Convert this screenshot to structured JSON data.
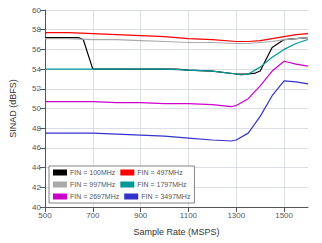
{
  "chart_data": {
    "type": "line",
    "xlabel": "Sample Rate (MSPS)",
    "ylabel": "SINAD (dBFS)",
    "xlim": [
      500,
      1600
    ],
    "ylim": [
      40,
      60
    ],
    "xticks": [
      500,
      700,
      900,
      1100,
      1300,
      1500
    ],
    "yticks": [
      40,
      42,
      44,
      46,
      48,
      50,
      52,
      54,
      56,
      58,
      60
    ],
    "grid": true,
    "legend": "lower left",
    "series": [
      {
        "name": "FIN = 100MHz",
        "color": "#000000",
        "x": [
          500,
          640,
          660,
          680,
          700,
          800,
          900,
          1000,
          1050,
          1100,
          1200,
          1300,
          1350,
          1380,
          1400,
          1450,
          1500,
          1550,
          1600
        ],
        "values": [
          57.2,
          57.2,
          57.0,
          55.5,
          54.0,
          54.0,
          54.0,
          54.0,
          54.0,
          53.9,
          53.8,
          53.5,
          53.5,
          53.6,
          53.8,
          56.2,
          57.0,
          57.1,
          57.2
        ]
      },
      {
        "name": "FIN = 497MHz",
        "color": "#ff0000",
        "x": [
          500,
          600,
          700,
          800,
          900,
          1000,
          1100,
          1200,
          1300,
          1350,
          1400,
          1450,
          1500,
          1550,
          1600
        ],
        "values": [
          57.7,
          57.7,
          57.6,
          57.5,
          57.4,
          57.3,
          57.1,
          57.0,
          56.8,
          56.8,
          56.9,
          57.1,
          57.3,
          57.5,
          57.6
        ]
      },
      {
        "name": "FIN = 997MHz",
        "color": "#aaaaaa",
        "x": [
          500,
          600,
          700,
          800,
          900,
          1000,
          1100,
          1200,
          1300,
          1350,
          1400,
          1450,
          1500,
          1550,
          1600
        ],
        "values": [
          57.1,
          57.1,
          57.0,
          57.0,
          56.9,
          56.8,
          56.7,
          56.7,
          56.6,
          56.6,
          56.7,
          56.8,
          57.0,
          57.1,
          57.2
        ]
      },
      {
        "name": "FIN = 1797MHz",
        "color": "#009999",
        "x": [
          500,
          600,
          700,
          800,
          900,
          1000,
          1100,
          1200,
          1300,
          1320,
          1350,
          1400,
          1450,
          1500,
          1550,
          1600
        ],
        "values": [
          54.0,
          54.0,
          54.0,
          54.0,
          54.0,
          54.0,
          53.9,
          53.8,
          53.5,
          53.4,
          53.5,
          54.2,
          55.2,
          56.0,
          56.6,
          57.0
        ]
      },
      {
        "name": "FIN = 2697MHz",
        "color": "#cc00cc",
        "x": [
          500,
          600,
          700,
          800,
          900,
          1000,
          1100,
          1200,
          1280,
          1300,
          1350,
          1400,
          1450,
          1500,
          1550,
          1600
        ],
        "values": [
          50.7,
          50.7,
          50.7,
          50.6,
          50.6,
          50.5,
          50.5,
          50.4,
          50.2,
          50.3,
          51.0,
          52.3,
          53.8,
          54.8,
          54.5,
          54.3
        ]
      },
      {
        "name": "FIN = 3497MHz",
        "color": "#3333cc",
        "x": [
          500,
          600,
          700,
          800,
          900,
          1000,
          1100,
          1200,
          1280,
          1300,
          1350,
          1400,
          1450,
          1500,
          1550,
          1600
        ],
        "values": [
          47.5,
          47.5,
          47.5,
          47.4,
          47.3,
          47.2,
          47.0,
          46.8,
          46.7,
          46.8,
          47.5,
          49.2,
          51.3,
          52.8,
          52.7,
          52.5
        ]
      }
    ]
  }
}
